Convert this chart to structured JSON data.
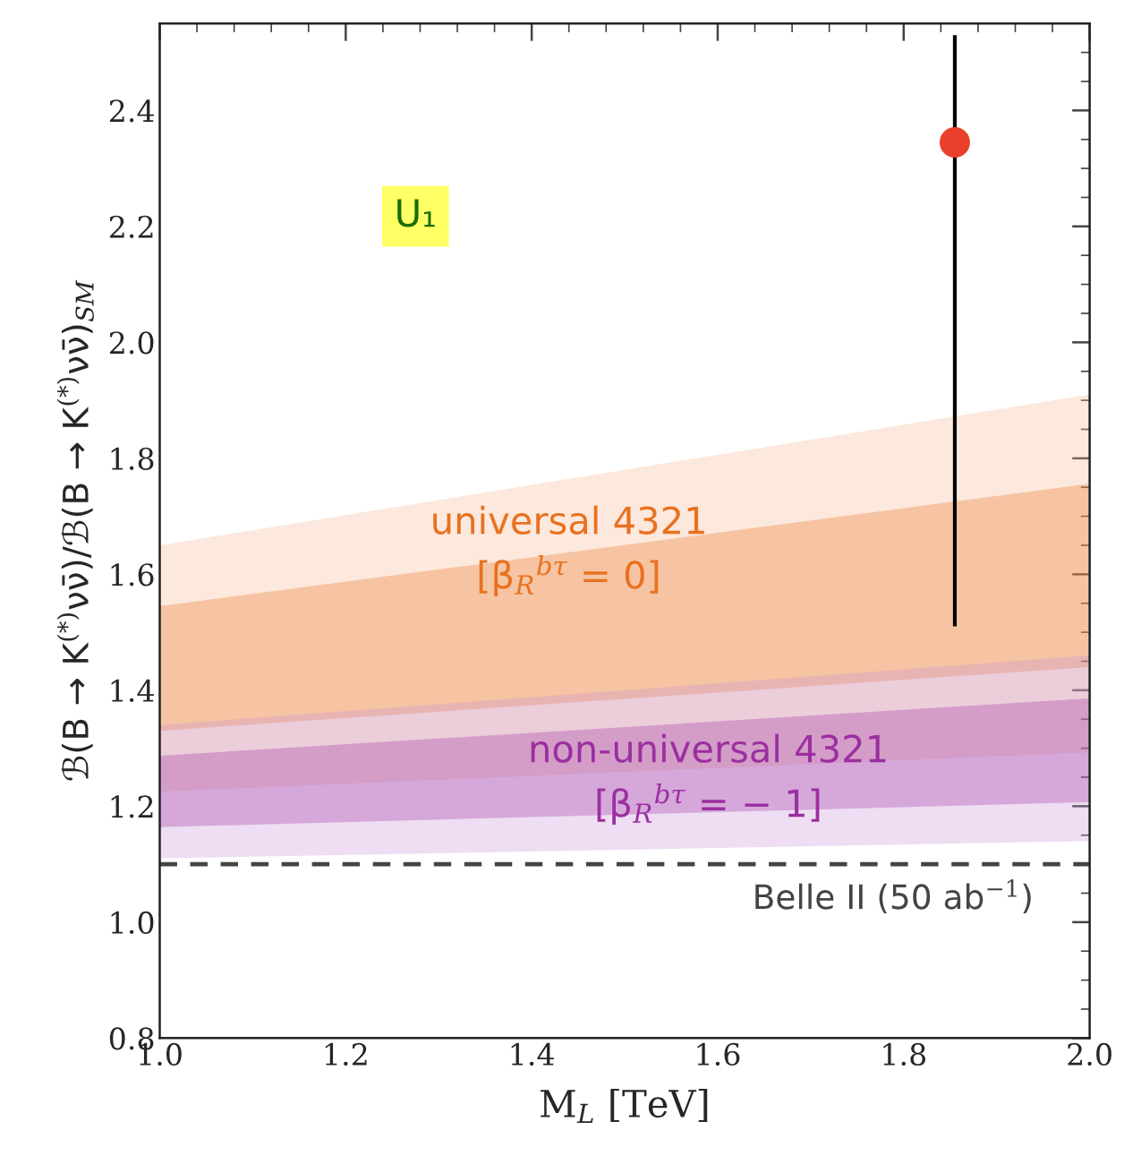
{
  "chart_data": {
    "type": "area",
    "xlabel": "M$_{L}$ [TeV]",
    "ylabel": "ℬ(B → K$^{(*)}$νν̄)/ℬ(B → K$^{(*)}$νν̄)$_{SM}$",
    "x": [
      1.0,
      2.0
    ],
    "xlim": [
      1.0,
      2.0
    ],
    "ylim": [
      0.8,
      2.55
    ],
    "xticks": [
      {
        "value": 1.0,
        "label": "1.0"
      },
      {
        "value": 1.2,
        "label": "1.2"
      },
      {
        "value": 1.4,
        "label": "1.4"
      },
      {
        "value": 1.6,
        "label": "1.6"
      },
      {
        "value": 1.8,
        "label": "1.8"
      },
      {
        "value": 2.0,
        "label": "2.0"
      }
    ],
    "yticks": [
      {
        "value": 0.8,
        "label": "0.8"
      },
      {
        "value": 1.0,
        "label": "1.0"
      },
      {
        "value": 1.2,
        "label": "1.2"
      },
      {
        "value": 1.4,
        "label": "1.4"
      },
      {
        "value": 1.6,
        "label": "1.6"
      },
      {
        "value": 1.8,
        "label": "1.8"
      },
      {
        "value": 2.0,
        "label": "2.0"
      },
      {
        "value": 2.2,
        "label": "2.2"
      },
      {
        "value": 2.4,
        "label": "2.4"
      }
    ],
    "grid": false,
    "series": [
      {
        "color": "#f5b48a",
        "values": [
          null,
          null
        ],
        "upper": [
          1.65,
          1.91
        ],
        "lower": [
          1.225,
          1.293
        ]
      },
      {
        "name": "universal 4321\n[β$_{R}$$^{bτ}$ = 0]",
        "color": "#e8711f",
        "values": [
          null,
          null
        ],
        "upper": [
          1.545,
          1.756
        ],
        "lower": [
          1.33,
          1.44
        ]
      },
      {
        "color": "#c890d8",
        "values": [
          null,
          null
        ],
        "upper": [
          1.34,
          1.46
        ],
        "lower": [
          1.11,
          1.14
        ]
      },
      {
        "name": "non-universal 4321\n[β$_{R}$$^{bτ}$ = − 1]",
        "color": "#9b2fa0",
        "values": [
          null,
          null
        ],
        "upper": [
          1.287,
          1.386
        ],
        "lower": [
          1.164,
          1.207
        ]
      },
      {
        "type": "scatter",
        "x": [
          1.855
        ],
        "color": "#e8402a",
        "values": [
          2.345
        ],
        "errors": [
          [
            1.51,
            2.53
          ]
        ]
      }
    ],
    "ref_lines": [
      {
        "axis": "y",
        "value": 1.1,
        "label": "Belle II (50 ab$^{−1}$)",
        "color": "#444444",
        "line_style": "dashed"
      }
    ],
    "annotations": [
      "U₁"
    ]
  }
}
